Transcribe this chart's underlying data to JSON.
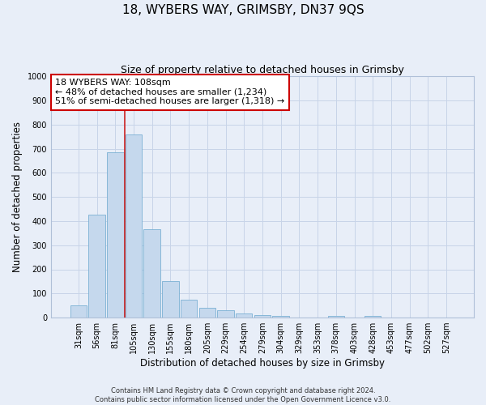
{
  "title": "18, WYBERS WAY, GRIMSBY, DN37 9QS",
  "subtitle": "Size of property relative to detached houses in Grimsby",
  "xlabel": "Distribution of detached houses by size in Grimsby",
  "ylabel": "Number of detached properties",
  "bar_labels": [
    "31sqm",
    "56sqm",
    "81sqm",
    "105sqm",
    "130sqm",
    "155sqm",
    "180sqm",
    "205sqm",
    "229sqm",
    "254sqm",
    "279sqm",
    "304sqm",
    "329sqm",
    "353sqm",
    "378sqm",
    "403sqm",
    "428sqm",
    "453sqm",
    "477sqm",
    "502sqm",
    "527sqm"
  ],
  "bar_values": [
    50,
    425,
    685,
    760,
    365,
    153,
    75,
    42,
    30,
    17,
    12,
    8,
    0,
    0,
    8,
    0,
    8,
    0,
    0,
    0,
    0
  ],
  "bar_color": "#c5d8ed",
  "bar_edge_color": "#7ab0d4",
  "annotation_box_text": "18 WYBERS WAY: 108sqm\n← 48% of detached houses are smaller (1,234)\n51% of semi-detached houses are larger (1,318) →",
  "annotation_box_color": "#ffffff",
  "annotation_box_edge_color": "#cc0000",
  "vline_x": 2.5,
  "vline_color": "#cc2222",
  "ylim": [
    0,
    1000
  ],
  "yticks": [
    0,
    100,
    200,
    300,
    400,
    500,
    600,
    700,
    800,
    900,
    1000
  ],
  "grid_color": "#c8d4e8",
  "background_color": "#e8eef8",
  "plot_bg_color": "#e8eef8",
  "footer_line1": "Contains HM Land Registry data © Crown copyright and database right 2024.",
  "footer_line2": "Contains public sector information licensed under the Open Government Licence v3.0.",
  "title_fontsize": 11,
  "subtitle_fontsize": 9,
  "axis_label_fontsize": 8.5,
  "tick_fontsize": 7,
  "annotation_fontsize": 8,
  "footer_fontsize": 6,
  "figsize": [
    6.0,
    5.0
  ],
  "dpi": 100
}
